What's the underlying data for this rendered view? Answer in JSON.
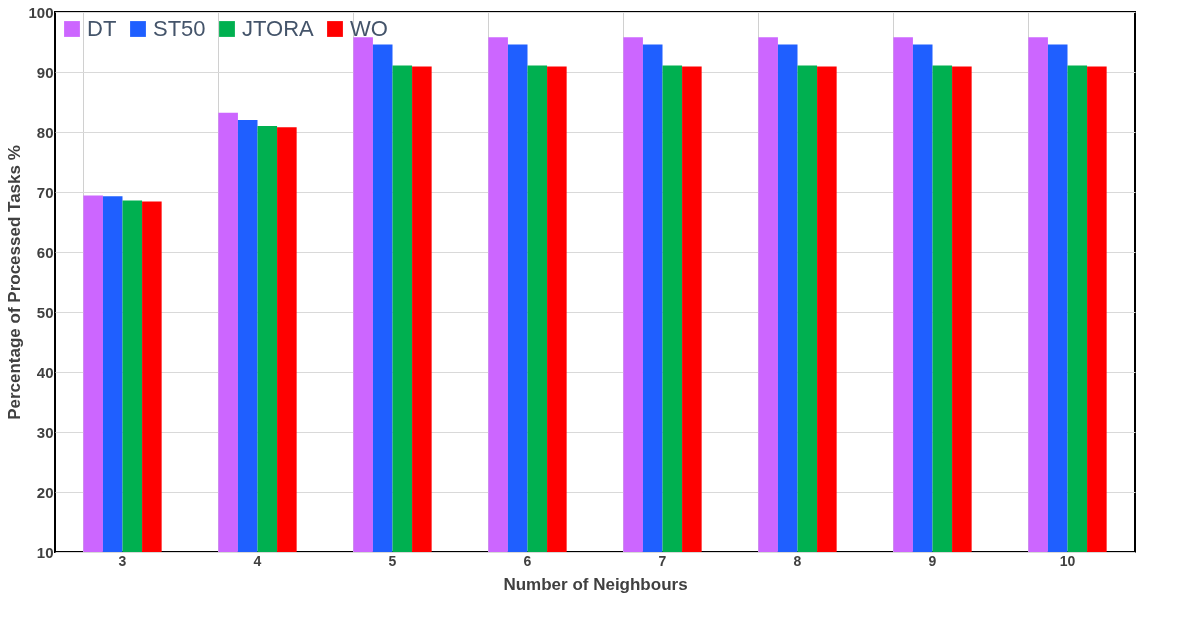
{
  "chart_data": {
    "type": "bar",
    "xlabel": "Number of Neighbours",
    "ylabel": "Percentage of Processed Tasks %",
    "categories": [
      "3",
      "4",
      "5",
      "6",
      "7",
      "8",
      "9",
      "10"
    ],
    "series": [
      {
        "name": "DT",
        "color": "#cc66ff",
        "values": [
          69.4,
          83.2,
          95.8,
          95.8,
          95.8,
          95.8,
          95.8,
          95.8
        ]
      },
      {
        "name": "ST50",
        "color": "#1f5fff",
        "values": [
          69.3,
          82.0,
          94.6,
          94.6,
          94.6,
          94.6,
          94.6,
          94.6
        ]
      },
      {
        "name": "JTORA",
        "color": "#00b050",
        "values": [
          68.6,
          81.0,
          91.1,
          91.1,
          91.1,
          91.1,
          91.1,
          91.1
        ]
      },
      {
        "name": "WO",
        "color": "#ff0000",
        "values": [
          68.4,
          80.8,
          90.9,
          90.9,
          90.9,
          90.9,
          90.9,
          90.9
        ]
      }
    ],
    "ylim": [
      10,
      100
    ],
    "yticks": [
      10,
      20,
      30,
      40,
      50,
      60,
      70,
      80,
      90,
      100
    ],
    "grid": true,
    "legend": "top left"
  }
}
